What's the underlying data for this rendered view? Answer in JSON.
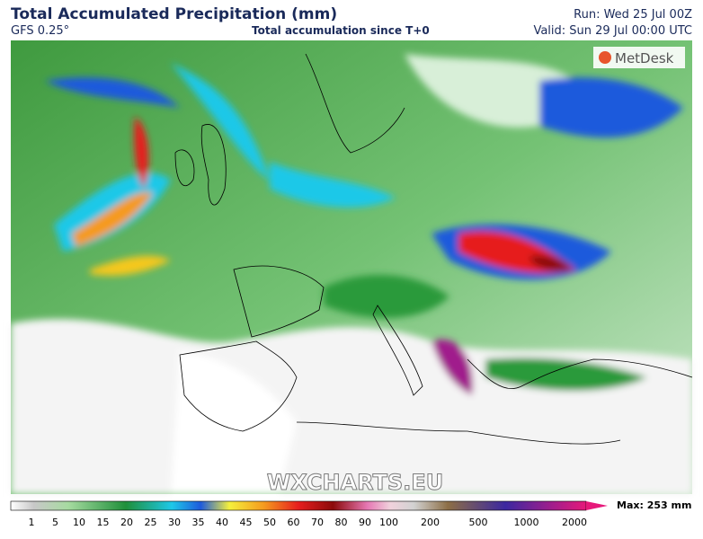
{
  "header": {
    "title": "Total Accumulated Precipitation (mm)",
    "model": "GFS 0.25°",
    "subtitle": "Total accumulation since T+0",
    "run": "Run: Wed 25 Jul 00Z",
    "valid": "Valid: Sun 29 Jul 00:00 UTC"
  },
  "map": {
    "logo": "MetDesk",
    "watermark": "WXCHARTS.EU"
  },
  "legend": {
    "ticks": [
      1,
      5,
      10,
      15,
      20,
      25,
      30,
      35,
      40,
      45,
      50,
      60,
      70,
      80,
      90,
      100,
      200,
      500,
      1000,
      2000
    ],
    "max": "Max: 253 mm"
  }
}
